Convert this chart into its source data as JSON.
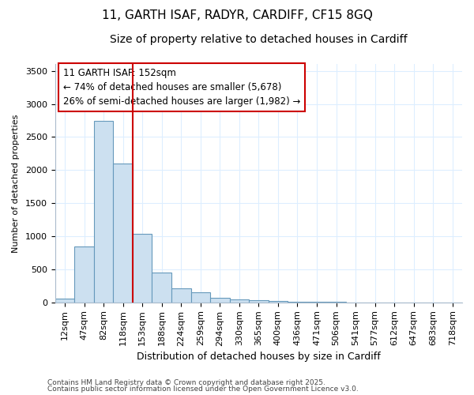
{
  "title_line1": "11, GARTH ISAF, RADYR, CARDIFF, CF15 8GQ",
  "title_line2": "Size of property relative to detached houses in Cardiff",
  "xlabel": "Distribution of detached houses by size in Cardiff",
  "ylabel": "Number of detached properties",
  "bar_labels": [
    "12sqm",
    "47sqm",
    "82sqm",
    "118sqm",
    "153sqm",
    "188sqm",
    "224sqm",
    "259sqm",
    "294sqm",
    "330sqm",
    "365sqm",
    "400sqm",
    "436sqm",
    "471sqm",
    "506sqm",
    "541sqm",
    "577sqm",
    "612sqm",
    "647sqm",
    "683sqm",
    "718sqm"
  ],
  "bar_values": [
    55,
    840,
    2740,
    2100,
    1030,
    450,
    210,
    150,
    65,
    50,
    30,
    20,
    10,
    5,
    3,
    2,
    2,
    1,
    1,
    1,
    1
  ],
  "bar_color": "#cce0f0",
  "bar_edge_color": "#6699bb",
  "vline_x_index": 3.5,
  "vline_color": "#cc0000",
  "annotation_line1": "11 GARTH ISAF: 152sqm",
  "annotation_line2": "← 74% of detached houses are smaller (5,678)",
  "annotation_line3": "26% of semi-detached houses are larger (1,982) →",
  "annotation_box_color": "#ffffff",
  "annotation_box_edge": "#cc0000",
  "ylim": [
    0,
    3600
  ],
  "yticks": [
    0,
    500,
    1000,
    1500,
    2000,
    2500,
    3000,
    3500
  ],
  "grid_color": "#ddeeff",
  "footnote_line1": "Contains HM Land Registry data © Crown copyright and database right 2025.",
  "footnote_line2": "Contains public sector information licensed under the Open Government Licence v3.0.",
  "bg_color": "#ffffff",
  "title1_fontsize": 11,
  "title2_fontsize": 10
}
